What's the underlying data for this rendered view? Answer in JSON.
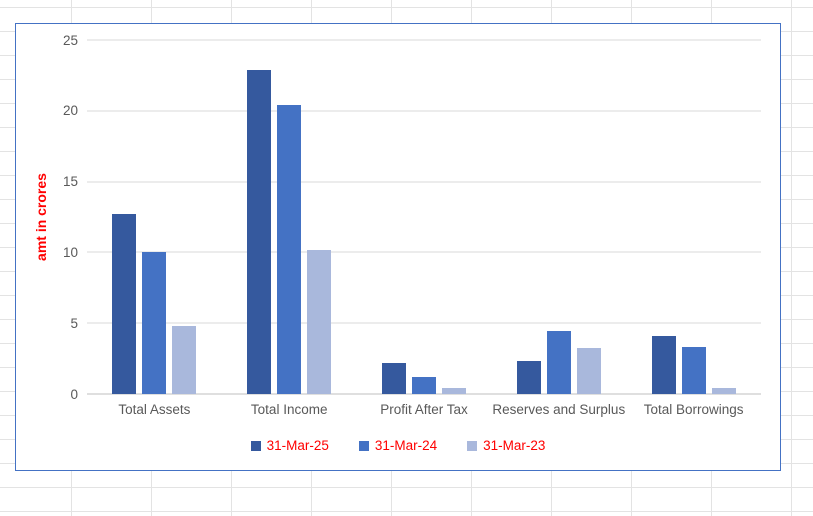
{
  "colors": {
    "chart_border": "#4472C4",
    "plot_gridline": "#D9D9D9",
    "axis_line": "#BFBFBF",
    "tick_text": "#595959",
    "category_text": "#595959",
    "legend_text": "#FF0000",
    "axis_title_text": "#FF0000",
    "sheet_gridline": "#E3E3E3"
  },
  "chart_data": {
    "type": "bar",
    "title": "",
    "xlabel": "",
    "ylabel": "amt in crores",
    "ylim": [
      0,
      25
    ],
    "yticks": [
      0,
      5,
      10,
      15,
      20,
      25
    ],
    "grid": true,
    "legend_position": "bottom",
    "categories": [
      "Total Assets",
      "Total Income",
      "Profit After Tax",
      "Reserves and Surplus",
      "Total Borrowings"
    ],
    "series": [
      {
        "name": "31-Mar-25",
        "color": "#35599E",
        "values": [
          12.7,
          22.9,
          2.2,
          2.35,
          4.1
        ]
      },
      {
        "name": "31-Mar-24",
        "color": "#4472C4",
        "values": [
          10.0,
          20.4,
          1.2,
          4.45,
          3.35
        ]
      },
      {
        "name": "31-Mar-23",
        "color": "#A9B8DC",
        "values": [
          4.8,
          10.2,
          0.4,
          3.25,
          0.45
        ]
      }
    ]
  }
}
